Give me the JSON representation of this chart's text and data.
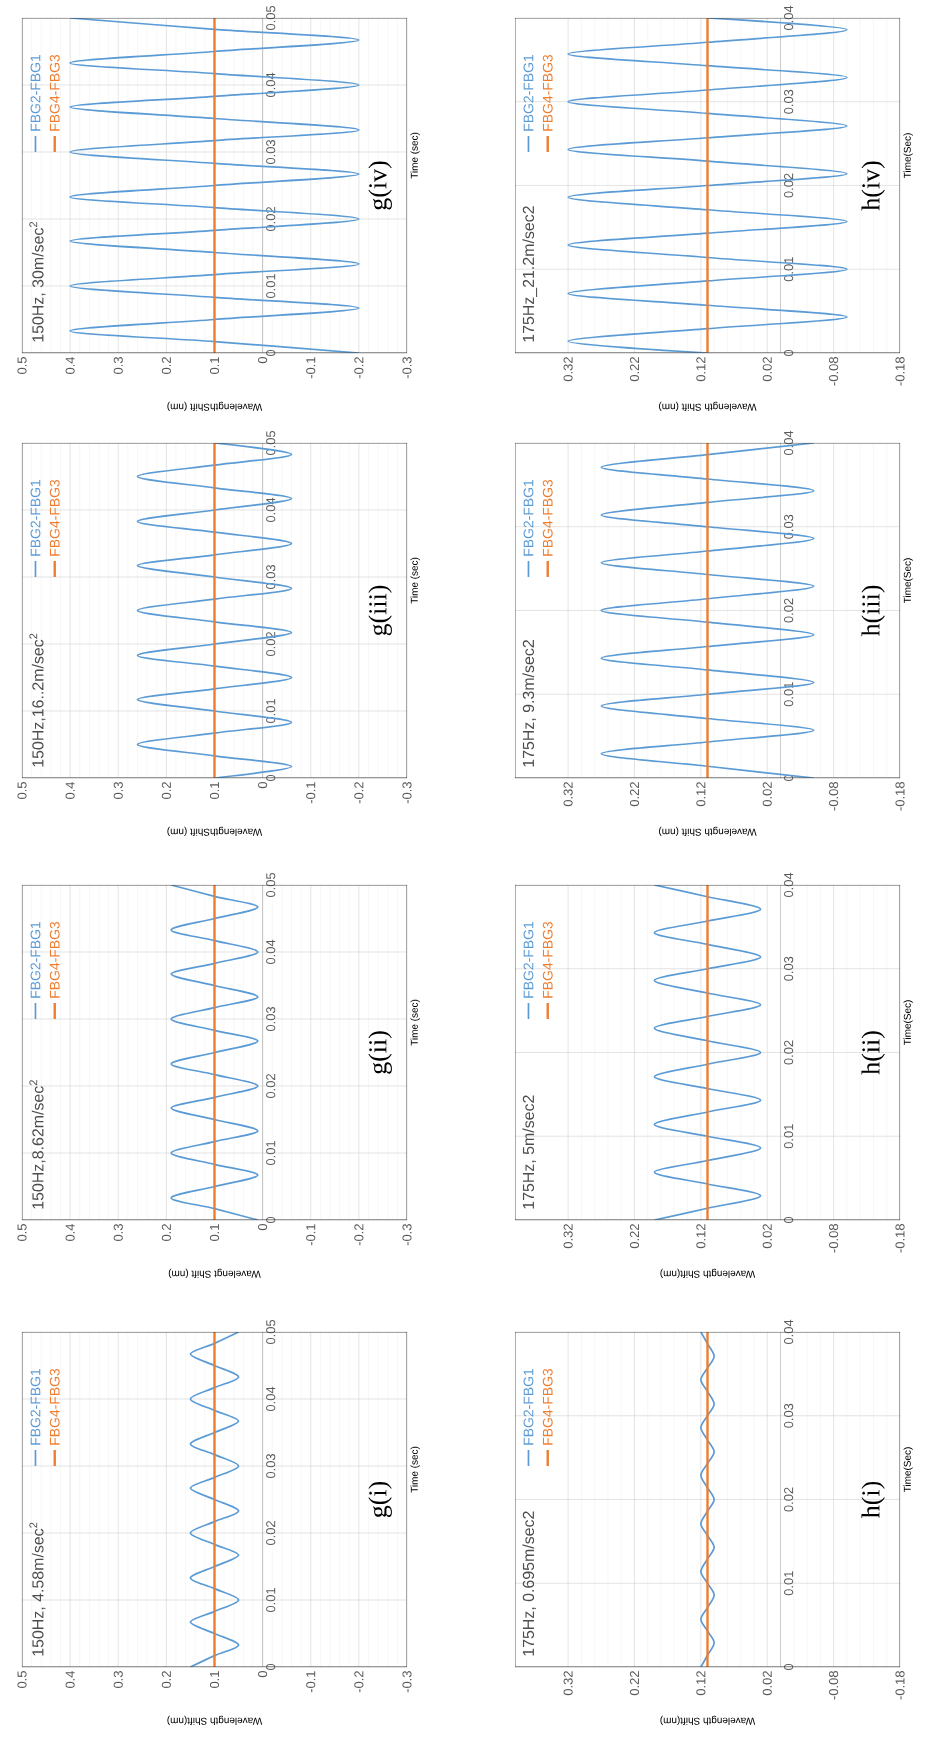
{
  "chart_data": [
    {
      "type": "line",
      "annotations": [
        "150Hz, 4.58m/sec$^{2}$",
        "g(i)"
      ],
      "xlabel": "Wavelength Shift(nm)",
      "ylabel": "Time (sec)",
      "xlim": [
        0.5,
        -0.3
      ],
      "xticks": [
        0.5,
        0.4,
        0.3,
        0.2,
        0.1,
        0,
        -0.1,
        -0.2,
        -0.3
      ],
      "ylim": [
        0,
        0.05
      ],
      "yticks": [
        0,
        0.01,
        0.02,
        0.03,
        0.04,
        0.05
      ],
      "grid": true,
      "legend": "top left",
      "series": [
        {
          "name": "FBG2-FBG1",
          "color": "#5b9bd5",
          "x": [
            0.15,
            0.1,
            0.05,
            0.1,
            0.15,
            0.1,
            0.05,
            0.1,
            0.15,
            0.1,
            0.05,
            0.1,
            0.15,
            0.1,
            0.05,
            0.1,
            0.15,
            0.1,
            0.05,
            0.1,
            0.15,
            0.1,
            0.05,
            0.1,
            0.15,
            0.1,
            0.05,
            0.1,
            0.15,
            0.1,
            0.05
          ],
          "values": [
            0,
            0.0017,
            0.0033,
            0.005,
            0.0067,
            0.0083,
            0.01,
            0.0117,
            0.0133,
            0.015,
            0.0167,
            0.0183,
            0.02,
            0.0217,
            0.0233,
            0.025,
            0.0267,
            0.0283,
            0.03,
            0.0317,
            0.0333,
            0.035,
            0.0367,
            0.0383,
            0.04,
            0.0417,
            0.0433,
            0.045,
            0.0467,
            0.0483,
            0.05
          ]
        },
        {
          "name": "FBG4-FBG3",
          "color": "#ed7d31",
          "x": [
            0.1,
            0.1
          ],
          "values": [
            0,
            0.05
          ]
        }
      ]
    },
    {
      "type": "line",
      "annotations": [
        "150Hz,8.62m/sec$^{2}$",
        "g(ii)"
      ],
      "xlabel": "Wavelengt Shift (nm)",
      "ylabel": "Time (sec)",
      "xlim": [
        0.5,
        -0.3
      ],
      "xticks": [
        0.5,
        0.4,
        0.3,
        0.2,
        0.1,
        0,
        -0.1,
        -0.2,
        -0.3
      ],
      "ylim": [
        0,
        0.05
      ],
      "yticks": [
        0,
        0.01,
        0.02,
        0.03,
        0.04,
        0.05
      ],
      "grid": true,
      "legend": "top left",
      "series": [
        {
          "name": "FBG2-FBG1",
          "color": "#5b9bd5",
          "x": [
            0.01,
            0.1,
            0.19,
            0.1,
            0.01,
            0.1,
            0.19,
            0.1,
            0.01,
            0.1,
            0.19,
            0.1,
            0.01,
            0.1,
            0.19,
            0.1,
            0.01,
            0.1,
            0.19,
            0.1,
            0.01,
            0.1,
            0.19,
            0.1,
            0.01,
            0.1,
            0.19,
            0.1,
            0.01,
            0.1,
            0.19
          ],
          "values": [
            0,
            0.0017,
            0.0033,
            0.005,
            0.0067,
            0.0083,
            0.01,
            0.0117,
            0.0133,
            0.015,
            0.0167,
            0.0183,
            0.02,
            0.0217,
            0.0233,
            0.025,
            0.0267,
            0.0283,
            0.03,
            0.0317,
            0.0333,
            0.035,
            0.0367,
            0.0383,
            0.04,
            0.0417,
            0.0433,
            0.045,
            0.0467,
            0.0483,
            0.05
          ]
        },
        {
          "name": "FBG4-FBG3",
          "color": "#ed7d31",
          "x": [
            0.1,
            0.1
          ],
          "values": [
            0,
            0.05
          ]
        }
      ]
    },
    {
      "type": "line",
      "annotations": [
        "150Hz,16..2m/sec$^{2}$",
        "g(iii)"
      ],
      "xlabel": "WavelengthShift (nm)",
      "ylabel": "Time (sec)",
      "xlim": [
        0.5,
        -0.3
      ],
      "xticks": [
        0.5,
        0.4,
        0.3,
        0.2,
        0.1,
        0,
        -0.1,
        -0.2,
        -0.3
      ],
      "ylim": [
        0,
        0.05
      ],
      "yticks": [
        0,
        0.01,
        0.02,
        0.03,
        0.04,
        0.05
      ],
      "grid": true,
      "legend": "top left",
      "series": [
        {
          "name": "FBG2-FBG1",
          "color": "#5b9bd5",
          "x": [
            0.1,
            -0.06,
            0.1,
            0.26,
            0.1,
            -0.06,
            0.1,
            0.26,
            0.1,
            -0.06,
            0.1,
            0.26,
            0.1,
            -0.06,
            0.1,
            0.26,
            0.1,
            -0.06,
            0.1,
            0.26,
            0.1,
            -0.06,
            0.1,
            0.26,
            0.1,
            -0.06,
            0.1,
            0.26,
            0.1,
            -0.06,
            0.1
          ],
          "values": [
            0,
            0.0017,
            0.0033,
            0.005,
            0.0067,
            0.0083,
            0.01,
            0.0117,
            0.0133,
            0.015,
            0.0167,
            0.0183,
            0.02,
            0.0217,
            0.0233,
            0.025,
            0.0267,
            0.0283,
            0.03,
            0.0317,
            0.0333,
            0.035,
            0.0367,
            0.0383,
            0.04,
            0.0417,
            0.0433,
            0.045,
            0.0467,
            0.0483,
            0.05
          ]
        },
        {
          "name": "FBG4-FBG3",
          "color": "#ed7d31",
          "x": [
            0.1,
            0.1
          ],
          "values": [
            0,
            0.05
          ]
        }
      ]
    },
    {
      "type": "line",
      "annotations": [
        "150Hz, 30m/sec$^{2}$",
        "g(iv)"
      ],
      "xlabel": "WavelengthShift (nm)",
      "ylabel": "Time (sec)",
      "xlim": [
        0.5,
        -0.3
      ],
      "xticks": [
        0.5,
        0.4,
        0.3,
        0.2,
        0.1,
        0,
        -0.1,
        -0.2,
        -0.3
      ],
      "ylim": [
        0,
        0.05
      ],
      "yticks": [
        0,
        0.01,
        0.02,
        0.03,
        0.04,
        0.05
      ],
      "grid": true,
      "legend": "top left",
      "series": [
        {
          "name": "FBG2-FBG1",
          "color": "#5b9bd5",
          "x": [
            -0.2,
            0.1,
            0.4,
            0.1,
            -0.2,
            0.1,
            0.4,
            0.1,
            -0.2,
            0.1,
            0.4,
            0.1,
            -0.2,
            0.1,
            0.4,
            0.1,
            -0.2,
            0.1,
            0.4,
            0.1,
            -0.2,
            0.1,
            0.4,
            0.1,
            -0.2,
            0.1,
            0.4,
            0.1,
            -0.2,
            0.1,
            0.4
          ],
          "values": [
            0,
            0.0017,
            0.0033,
            0.005,
            0.0067,
            0.0083,
            0.01,
            0.0117,
            0.0133,
            0.015,
            0.0167,
            0.0183,
            0.02,
            0.0217,
            0.0233,
            0.025,
            0.0267,
            0.0283,
            0.03,
            0.0317,
            0.0333,
            0.035,
            0.0367,
            0.0383,
            0.04,
            0.0417,
            0.0433,
            0.045,
            0.0467,
            0.0483,
            0.05
          ]
        },
        {
          "name": "FBG4-FBG3",
          "color": "#ed7d31",
          "x": [
            0.1,
            0.1
          ],
          "values": [
            0,
            0.05
          ]
        }
      ]
    },
    {
      "type": "line",
      "annotations": [
        "175Hz, 0.695m/sec2",
        "h(i)"
      ],
      "xlabel": "Wavelength Shift(nm)",
      "ylabel": "Time(Sec)",
      "xlim": [
        0.4,
        -0.18
      ],
      "xticks": [
        0.32,
        0.22,
        0.12,
        0.02,
        -0.08,
        -0.18
      ],
      "ylim": [
        0,
        0.04
      ],
      "yticks": [
        0,
        0.01,
        0.02,
        0.03,
        0.04
      ],
      "grid": true,
      "legend": "top left",
      "series": [
        {
          "name": "FBG2-FBG1",
          "color": "#5b9bd5",
          "x": [
            0.12,
            0.11,
            0.1,
            0.11,
            0.12,
            0.11,
            0.1,
            0.11,
            0.12,
            0.11,
            0.1,
            0.11,
            0.12,
            0.11,
            0.1,
            0.11,
            0.12,
            0.11,
            0.1,
            0.11,
            0.12,
            0.11,
            0.1,
            0.11,
            0.12,
            0.11,
            0.1,
            0.11,
            0.12
          ],
          "values": [
            0,
            0.0014,
            0.0029,
            0.0043,
            0.0057,
            0.0071,
            0.0086,
            0.01,
            0.0114,
            0.0129,
            0.0143,
            0.0157,
            0.0171,
            0.0186,
            0.02,
            0.0214,
            0.0229,
            0.0243,
            0.0257,
            0.0271,
            0.0286,
            0.03,
            0.0314,
            0.0329,
            0.0343,
            0.0357,
            0.0371,
            0.0386,
            0.04
          ]
        },
        {
          "name": "FBG4-FBG3",
          "color": "#ed7d31",
          "x": [
            0.11,
            0.11
          ],
          "values": [
            0,
            0.04
          ]
        }
      ]
    },
    {
      "type": "line",
      "annotations": [
        "175Hz, 5m/sec2",
        "h(ii)"
      ],
      "xlabel": "Wavelength Shift(nm)",
      "ylabel": "Time(Sec)",
      "xlim": [
        0.4,
        -0.18
      ],
      "xticks": [
        0.32,
        0.22,
        0.12,
        0.02,
        -0.08,
        -0.18
      ],
      "ylim": [
        0,
        0.04
      ],
      "yticks": [
        0,
        0.01,
        0.02,
        0.03,
        0.04
      ],
      "grid": true,
      "legend": "top left",
      "series": [
        {
          "name": "FBG2-FBG1",
          "color": "#5b9bd5",
          "x": [
            0.19,
            0.11,
            0.03,
            0.11,
            0.19,
            0.11,
            0.03,
            0.11,
            0.19,
            0.11,
            0.03,
            0.11,
            0.19,
            0.11,
            0.03,
            0.11,
            0.19,
            0.11,
            0.03,
            0.11,
            0.19,
            0.11,
            0.03,
            0.11,
            0.19,
            0.11,
            0.03,
            0.11,
            0.19
          ],
          "values": [
            0,
            0.0014,
            0.0029,
            0.0043,
            0.0057,
            0.0071,
            0.0086,
            0.01,
            0.0114,
            0.0129,
            0.0143,
            0.0157,
            0.0171,
            0.0186,
            0.02,
            0.0214,
            0.0229,
            0.0243,
            0.0257,
            0.0271,
            0.0286,
            0.03,
            0.0314,
            0.0329,
            0.0343,
            0.0357,
            0.0371,
            0.0386,
            0.04
          ]
        },
        {
          "name": "FBG4-FBG3",
          "color": "#ed7d31",
          "x": [
            0.11,
            0.11
          ],
          "values": [
            0,
            0.04
          ]
        }
      ]
    },
    {
      "type": "line",
      "annotations": [
        "175Hz, 9.3m/sec2",
        "h(iii)"
      ],
      "xlabel": "Wavelength Shift (nm)",
      "ylabel": "Time(Sec)",
      "xlim": [
        0.4,
        -0.18
      ],
      "xticks": [
        0.32,
        0.22,
        0.12,
        0.02,
        -0.08,
        -0.18
      ],
      "ylim": [
        0,
        0.04
      ],
      "yticks": [
        0,
        0.01,
        0.02,
        0.03,
        0.04
      ],
      "grid": true,
      "legend": "top left",
      "series": [
        {
          "name": "FBG2-FBG1",
          "color": "#5b9bd5",
          "x": [
            -0.05,
            0.11,
            0.27,
            0.11,
            -0.05,
            0.11,
            0.27,
            0.11,
            -0.05,
            0.11,
            0.27,
            0.11,
            -0.05,
            0.11,
            0.27,
            0.11,
            -0.05,
            0.11,
            0.27,
            0.11,
            -0.05,
            0.11,
            0.27,
            0.11,
            -0.05,
            0.11,
            0.27,
            0.11,
            -0.05
          ],
          "values": [
            0,
            0.0014,
            0.0029,
            0.0043,
            0.0057,
            0.0071,
            0.0086,
            0.01,
            0.0114,
            0.0129,
            0.0143,
            0.0157,
            0.0171,
            0.0186,
            0.02,
            0.0214,
            0.0229,
            0.0243,
            0.0257,
            0.0271,
            0.0286,
            0.03,
            0.0314,
            0.0329,
            0.0343,
            0.0357,
            0.0371,
            0.0386,
            0.04
          ]
        },
        {
          "name": "FBG4-FBG3",
          "color": "#ed7d31",
          "x": [
            0.11,
            0.11
          ],
          "values": [
            0,
            0.04
          ]
        }
      ]
    },
    {
      "type": "line",
      "annotations": [
        "175Hz_21.2m/sec2",
        "h(iv)"
      ],
      "xlabel": "Wavelength Shift (nm)",
      "ylabel": "Time(Sec)",
      "xlim": [
        0.4,
        -0.18
      ],
      "xticks": [
        0.32,
        0.22,
        0.12,
        0.02,
        -0.08,
        -0.18
      ],
      "ylim": [
        0,
        0.04
      ],
      "yticks": [
        0,
        0.01,
        0.02,
        0.03,
        0.04
      ],
      "grid": true,
      "legend": "top left",
      "series": [
        {
          "name": "FBG2-FBG1",
          "color": "#5b9bd5",
          "x": [
            0.11,
            0.32,
            0.11,
            -0.1,
            0.11,
            0.32,
            0.11,
            -0.1,
            0.11,
            0.32,
            0.11,
            -0.1,
            0.11,
            0.32,
            0.11,
            -0.1,
            0.11,
            0.32,
            0.11,
            -0.1,
            0.11,
            0.32,
            0.11,
            -0.1,
            0.11,
            0.32,
            0.11,
            -0.1,
            0.11
          ],
          "values": [
            0,
            0.0014,
            0.0029,
            0.0043,
            0.0057,
            0.0071,
            0.0086,
            0.01,
            0.0114,
            0.0129,
            0.0143,
            0.0157,
            0.0171,
            0.0186,
            0.02,
            0.0214,
            0.0229,
            0.0243,
            0.0257,
            0.0271,
            0.0286,
            0.03,
            0.0314,
            0.0329,
            0.0343,
            0.0357,
            0.0371,
            0.0386,
            0.04
          ]
        },
        {
          "name": "FBG4-FBG3",
          "color": "#ed7d31",
          "x": [
            0.11,
            0.11
          ],
          "values": [
            0,
            0.04
          ]
        }
      ]
    }
  ]
}
